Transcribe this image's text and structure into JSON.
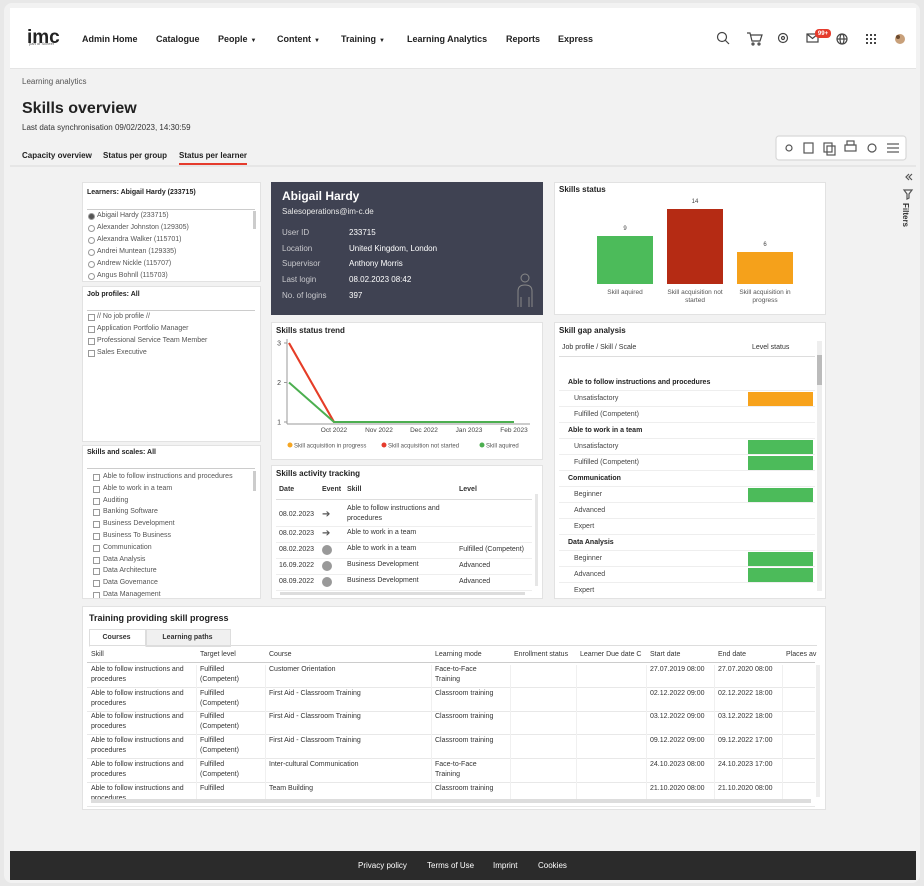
{
  "header": {
    "logo": "imc",
    "logo_sub": "part of Scheer",
    "nav": [
      "Admin Home",
      "Catalogue",
      "People",
      "Content",
      "Training",
      "Learning Analytics",
      "Reports",
      "Express"
    ],
    "nav_dropdown": [
      false,
      false,
      true,
      true,
      true,
      false,
      false,
      false
    ],
    "badge": "99+"
  },
  "breadcrumb": "Learning analytics",
  "title": "Skills overview",
  "sync": "Last data synchronisation 09/02/2023, 14:30:59",
  "tabs": {
    "items": [
      "Capacity overview",
      "Status per group",
      "Status per learner"
    ],
    "active": 2
  },
  "filters": "Filters",
  "learners": {
    "title": "Learners: Abigail Hardy (233715)",
    "selected": 0,
    "items": [
      "Abigail Hardy (233715)",
      "Alexander Johnston (129305)",
      "Alexandra Walker (115701)",
      "Andrei Muntean (129335)",
      "Andrew Nickle (115707)",
      "Angus Bohnll (115703)"
    ]
  },
  "job_profiles": {
    "title": "Job profiles: All",
    "items": [
      "// No job profile //",
      "Application Portfolio Manager",
      "Professional Service Team Member",
      "Sales Executive"
    ]
  },
  "skills_filter": {
    "title": "Skills and scales: All",
    "items": [
      "Able to follow instructions and procedures",
      "Able to work in a team",
      "Auditing",
      "Banking Software",
      "Business Development",
      "Business To Business",
      "Communication",
      "Data Analysis",
      "Data Architecture",
      "Data Governance",
      "Data Management"
    ]
  },
  "profile": {
    "name": "Abigail Hardy",
    "email": "Salesoperations@im-c.de",
    "fields": [
      {
        "label": "User ID",
        "value": "233715"
      },
      {
        "label": "Location",
        "value": "United Kingdom, London"
      },
      {
        "label": "Supervisor",
        "value": "Anthony Morris"
      },
      {
        "label": "Last login",
        "value": "08.02.2023 08:42"
      },
      {
        "label": "No. of logins",
        "value": "397"
      }
    ]
  },
  "skills_status": {
    "type": "bar",
    "title": "Skills status",
    "categories": [
      "Skill aquired",
      "Skill acquisition not started",
      "Skill acquisition in progress"
    ],
    "values": [
      9,
      14,
      6
    ],
    "colors": [
      "#4cbb5a",
      "#b52b14",
      "#f5a11b"
    ]
  },
  "skills_trend": {
    "type": "line",
    "title": "Skills status trend",
    "categories": [
      null,
      "Oct 2022",
      "Nov 2022",
      "Dec 2022",
      "Jan 2023",
      "Feb 2023"
    ],
    "ylim": [
      1,
      3
    ],
    "yticks": [
      1,
      2,
      3
    ],
    "series": [
      {
        "name": "Skill acquisition in progress",
        "color": "#f5a623",
        "values": [
          3,
          1,
          1,
          1,
          1,
          1
        ]
      },
      {
        "name": "Skill acquisition not started",
        "color": "#e53b2c",
        "values": [
          3,
          1,
          1,
          1,
          1,
          1
        ]
      },
      {
        "name": "Skill aquired",
        "color": "#4caf50",
        "values": [
          2,
          1,
          1,
          1,
          1,
          1
        ]
      }
    ]
  },
  "activity": {
    "title": "Skills activity tracking",
    "columns": [
      "Date",
      "Event",
      "Skill",
      "Level"
    ],
    "rows": [
      {
        "date": "08.02.2023",
        "event": "arrow",
        "skill": "Able to follow instructions and procedures"
      },
      {
        "date": "08.02.2023",
        "event": "arrow",
        "skill": "Able to work in a team"
      },
      {
        "date": "08.02.2023",
        "event": "circle",
        "skill": "Able to work in a team",
        "level": "Fulfilled (Competent)"
      },
      {
        "date": "16.09.2022",
        "event": "circle",
        "skill": "Business Development",
        "level": "Advanced"
      },
      {
        "date": "08.09.2022",
        "event": "circle",
        "skill": "Business Development",
        "level": "Advanced"
      }
    ]
  },
  "gap": {
    "title": "Skill gap analysis",
    "columns": [
      "Job profile / Skill / Scale",
      "Level status"
    ],
    "groups": [
      {
        "skill": "Able to follow instructions and procedures",
        "scales": [
          {
            "name": "Unsatisfactory",
            "status": "#f7a21b"
          },
          {
            "name": "Fulfilled (Competent)"
          }
        ]
      },
      {
        "skill": "Able to work in a team",
        "scales": [
          {
            "name": "Unsatisfactory",
            "status": "#4cbb5a"
          },
          {
            "name": "Fulfilled (Competent)",
            "status": "#4cbb5a"
          }
        ]
      },
      {
        "skill": "Communication",
        "scales": [
          {
            "name": "Beginner",
            "status": "#4cbb5a"
          },
          {
            "name": "Advanced"
          },
          {
            "name": "Expert"
          }
        ]
      },
      {
        "skill": "Data Analysis",
        "scales": [
          {
            "name": "Beginner",
            "status": "#4cbb5a"
          },
          {
            "name": "Advanced",
            "status": "#4cbb5a"
          },
          {
            "name": "Expert"
          }
        ]
      }
    ]
  },
  "training": {
    "title": "Training providing skill progress",
    "tabs": [
      "Courses",
      "Learning paths"
    ],
    "active_tab": 0,
    "columns": [
      "Skill",
      "Target level",
      "Course",
      "Learning mode",
      "Enrollment status",
      "Learner Due date C",
      "Start date",
      "End date",
      "Places av"
    ],
    "rows": [
      [
        "Able to follow instructions and procedures",
        "Fulfilled (Competent)",
        "Customer Orientation",
        "Face-to-Face Training",
        null,
        null,
        "27.07.2019 08:00",
        "27.07.2020 08:00",
        null
      ],
      [
        "Able to follow instructions and procedures",
        "Fulfilled (Competent)",
        "First Aid - Classroom Training",
        "Classroom training",
        null,
        null,
        "02.12.2022 09:00",
        "02.12.2022 18:00",
        null
      ],
      [
        "Able to follow instructions and procedures",
        "Fulfilled (Competent)",
        "First Aid - Classroom Training",
        "Classroom training",
        null,
        null,
        "03.12.2022 09:00",
        "03.12.2022 18:00",
        null
      ],
      [
        "Able to follow instructions and procedures",
        "Fulfilled (Competent)",
        "First Aid - Classroom Training",
        "Classroom training",
        null,
        null,
        "09.12.2022 09:00",
        "09.12.2022 17:00",
        null
      ],
      [
        "Able to follow instructions and procedures",
        "Fulfilled (Competent)",
        "Inter-cultural Communication",
        "Face-to-Face Training",
        null,
        null,
        "24.10.2023 08:00",
        "24.10.2023 17:00",
        null
      ],
      [
        "Able to follow instructions and procedures",
        "Fulfilled",
        "Team Building",
        "Classroom training",
        null,
        null,
        "21.10.2020 08:00",
        "21.10.2020 08:00",
        null
      ]
    ]
  },
  "footer": [
    "Privacy policy",
    "Terms of Use",
    "Imprint",
    "Cookies"
  ]
}
